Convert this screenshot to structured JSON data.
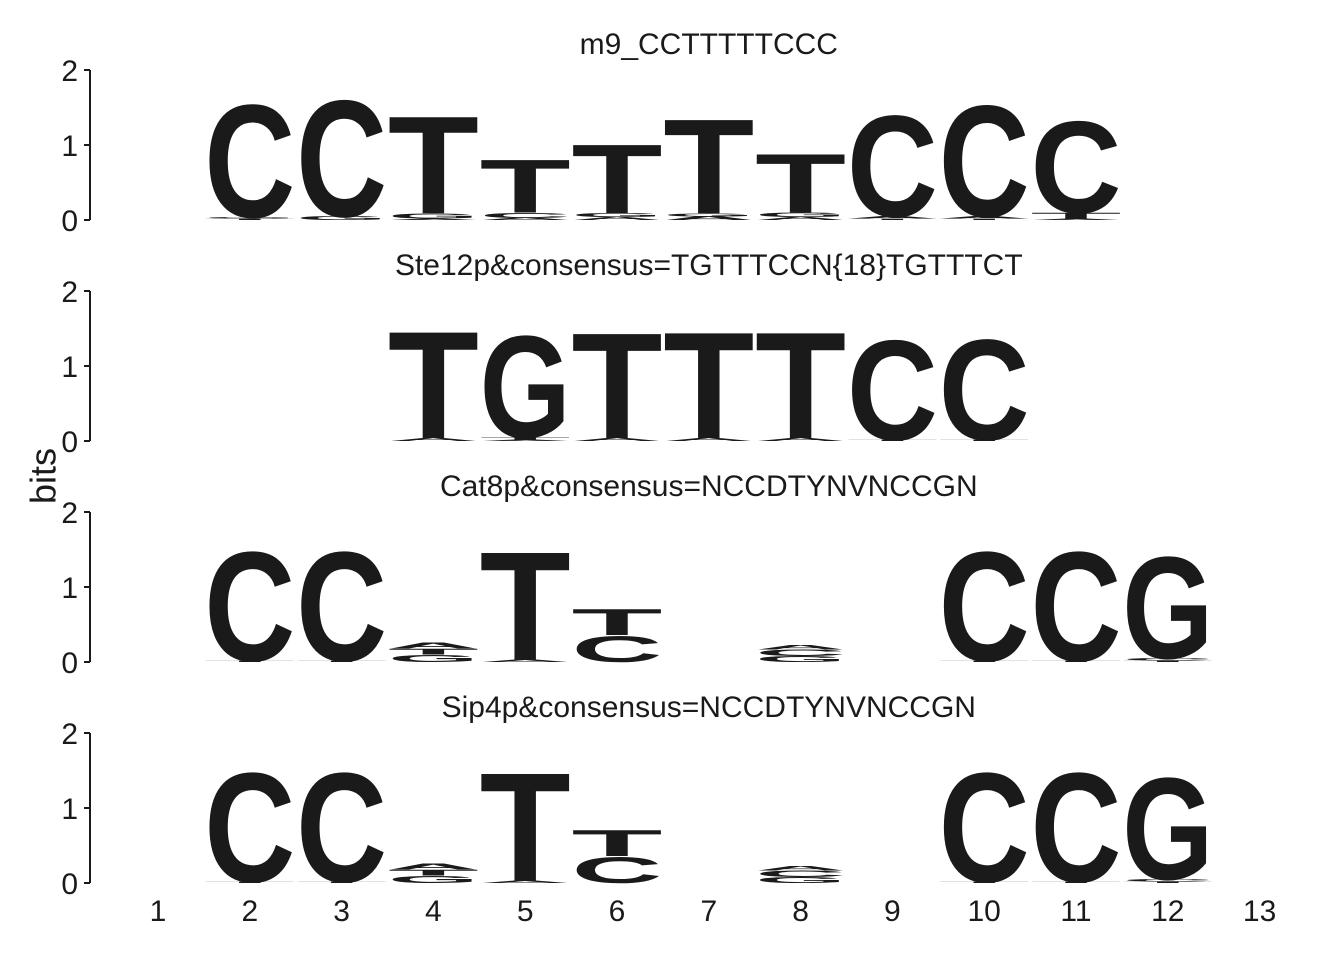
{
  "chart_data": {
    "type": "sequence-logo",
    "ylabel": "bits",
    "ylim": [
      0,
      2
    ],
    "yticks": [
      0,
      1,
      2
    ],
    "xticks": [
      1,
      2,
      3,
      4,
      5,
      6,
      7,
      8,
      9,
      10,
      11,
      12,
      13
    ],
    "colors": {
      "A": "#2e9a44",
      "C": "#1f4e9a",
      "G": "#f5a623",
      "T": "#cc1430"
    },
    "panels": [
      {
        "title": "m9_CCTTTTTCCC",
        "start": 2,
        "positions": [
          [
            [
              "T",
              0.02
            ],
            [
              "G",
              0.02
            ],
            [
              "C",
              1.55
            ]
          ],
          [
            [
              "G",
              0.05
            ],
            [
              "C",
              1.6
            ]
          ],
          [
            [
              "A",
              0.02
            ],
            [
              "G",
              0.07
            ],
            [
              "T",
              1.34
            ]
          ],
          [
            [
              "A",
              0.03
            ],
            [
              "C",
              0.07
            ],
            [
              "T",
              0.73
            ]
          ],
          [
            [
              "A",
              0.04
            ],
            [
              "G",
              0.05
            ],
            [
              "T",
              0.95
            ]
          ],
          [
            [
              "A",
              0.05
            ],
            [
              "G",
              0.04
            ],
            [
              "T",
              1.3
            ]
          ],
          [
            [
              "A",
              0.04
            ],
            [
              "G",
              0.06
            ],
            [
              "T",
              0.81
            ]
          ],
          [
            [
              "T",
              0.02
            ],
            [
              "A",
              0.03
            ],
            [
              "C",
              1.39
            ]
          ],
          [
            [
              "T",
              0.02
            ],
            [
              "A",
              0.03
            ],
            [
              "C",
              1.53
            ]
          ],
          [
            [
              "A",
              0.02
            ],
            [
              "T",
              0.08
            ],
            [
              "C",
              1.26
            ]
          ]
        ]
      },
      {
        "title": "Ste12p&consensus=TGTTTCCN{18}TGTTTCT",
        "start": 4,
        "positions": [
          [
            [
              "A",
              0.04
            ],
            [
              "T",
              1.47
            ]
          ],
          [
            [
              "A",
              0.02
            ],
            [
              "T",
              0.03
            ],
            [
              "G",
              1.4
            ]
          ],
          [
            [
              "A",
              0.04
            ],
            [
              "T",
              1.45
            ]
          ],
          [
            [
              "A",
              0.04
            ],
            [
              "T",
              1.46
            ]
          ],
          [
            [
              "A",
              0.04
            ],
            [
              "T",
              1.46
            ]
          ],
          [
            [
              "T",
              0.02
            ],
            [
              "C",
              1.37
            ]
          ],
          [
            [
              "T",
              0.02
            ],
            [
              "C",
              1.38
            ]
          ]
        ]
      },
      {
        "title": "Cat8p&consensus=NCCDTYNVNCCGN",
        "start": 2,
        "positions": [
          [
            [
              "T",
              0.02
            ],
            [
              "C",
              1.5
            ]
          ],
          [
            [
              "T",
              0.02
            ],
            [
              "C",
              1.5
            ]
          ],
          [
            [
              "G",
              0.1
            ],
            [
              "T",
              0.08
            ],
            [
              "A",
              0.08
            ]
          ],
          [
            [
              "A",
              0.03
            ],
            [
              "T",
              1.49
            ]
          ],
          [
            [
              "C",
              0.36
            ],
            [
              "T",
              0.36
            ]
          ],
          [],
          [
            [
              "G",
              0.08
            ],
            [
              "C",
              0.09
            ],
            [
              "A",
              0.06
            ]
          ],
          [],
          [
            [
              "T",
              0.02
            ],
            [
              "C",
              1.5
            ]
          ],
          [
            [
              "T",
              0.02
            ],
            [
              "C",
              1.5
            ]
          ],
          [
            [
              "T",
              0.02
            ],
            [
              "C",
              0.03
            ],
            [
              "G",
              1.4
            ]
          ]
        ]
      },
      {
        "title": "Sip4p&consensus=NCCDTYNVNCCGN",
        "start": 2,
        "positions": [
          [
            [
              "T",
              0.02
            ],
            [
              "C",
              1.5
            ]
          ],
          [
            [
              "T",
              0.02
            ],
            [
              "C",
              1.5
            ]
          ],
          [
            [
              "G",
              0.1
            ],
            [
              "T",
              0.08
            ],
            [
              "A",
              0.08
            ]
          ],
          [
            [
              "A",
              0.03
            ],
            [
              "T",
              1.49
            ]
          ],
          [
            [
              "C",
              0.36
            ],
            [
              "T",
              0.36
            ]
          ],
          [],
          [
            [
              "G",
              0.08
            ],
            [
              "C",
              0.09
            ],
            [
              "A",
              0.06
            ]
          ],
          [],
          [
            [
              "T",
              0.02
            ],
            [
              "C",
              1.5
            ]
          ],
          [
            [
              "T",
              0.02
            ],
            [
              "C",
              1.5
            ]
          ],
          [
            [
              "T",
              0.02
            ],
            [
              "C",
              0.03
            ],
            [
              "G",
              1.4
            ]
          ]
        ]
      }
    ]
  }
}
